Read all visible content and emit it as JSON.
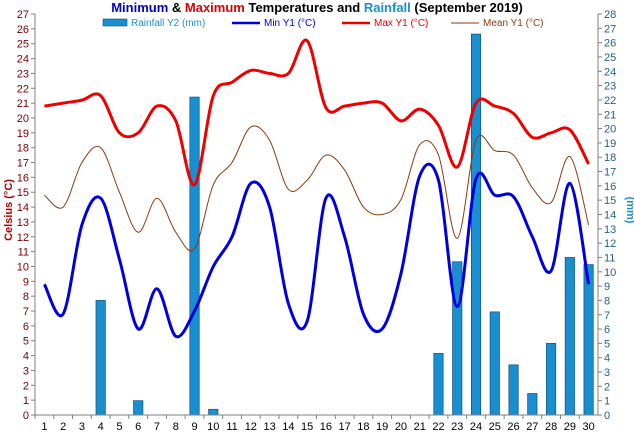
{
  "chart_data": {
    "type": "bar+line",
    "title_parts": [
      {
        "text": "Minimum",
        "color": "#0000cc"
      },
      {
        "text": " & ",
        "color": "#000000"
      },
      {
        "text": "Maximum",
        "color": "#dd0000"
      },
      {
        "text": " Temperatures and ",
        "color": "#000000"
      },
      {
        "text": "Rainfall",
        "color": "#1a8fd0"
      },
      {
        "text": " (September 2019)",
        "color": "#000000"
      }
    ],
    "ylabel_left": "Celsius (°C)",
    "ylabel_right": "(mm)",
    "ylim_left": [
      0,
      27
    ],
    "ylim_right": [
      0,
      28
    ],
    "x": [
      1,
      2,
      3,
      4,
      5,
      6,
      7,
      8,
      9,
      10,
      11,
      12,
      13,
      14,
      15,
      16,
      17,
      18,
      19,
      20,
      21,
      22,
      23,
      24,
      25,
      26,
      27,
      28,
      29,
      30
    ],
    "series": [
      {
        "name": "Rainfall Y2 (mm)",
        "kind": "bar",
        "axis": "right",
        "color": "#1a8fd0",
        "values": [
          0,
          0,
          0,
          8,
          0,
          1,
          0,
          0,
          22.2,
          0.4,
          0,
          0,
          0,
          0,
          0,
          0,
          0,
          0,
          0,
          0,
          0,
          4.3,
          10.7,
          26.6,
          7.2,
          3.5,
          1.5,
          5,
          11,
          10.5
        ]
      },
      {
        "name": "Min Y1 (°C)",
        "kind": "line",
        "axis": "left",
        "color": "#0000dd",
        "values": [
          8.8,
          6.8,
          12.8,
          14.6,
          10.5,
          5.8,
          8.5,
          5.3,
          7.0,
          10.0,
          12.0,
          15.6,
          14.0,
          7.5,
          6.3,
          14.6,
          12.0,
          6.8,
          5.8,
          9.5,
          16.1,
          15.8,
          7.3,
          15.9,
          14.8,
          14.7,
          12.0,
          9.7,
          15.6,
          8.8
        ]
      },
      {
        "name": "Max Y1 (°C)",
        "kind": "line",
        "axis": "left",
        "color": "#ee0000",
        "values": [
          20.8,
          21.0,
          21.2,
          21.5,
          19.0,
          19.0,
          20.8,
          19.8,
          15.5,
          21.5,
          22.4,
          23.2,
          23.0,
          23.0,
          25.2,
          20.7,
          20.8,
          21.0,
          21.0,
          19.8,
          20.6,
          19.5,
          16.7,
          21.0,
          20.8,
          20.3,
          18.7,
          19.0,
          19.2,
          16.9
        ]
      },
      {
        "name": "Mean Y1 (°C)",
        "kind": "line",
        "axis": "left",
        "color": "#8b3a0e",
        "values": [
          14.8,
          14.0,
          17.0,
          18.0,
          15.0,
          12.3,
          14.6,
          12.3,
          11.2,
          15.5,
          17.0,
          19.4,
          18.5,
          15.2,
          15.8,
          17.5,
          16.5,
          14.0,
          13.5,
          14.5,
          18.2,
          17.5,
          11.9,
          18.5,
          17.8,
          17.5,
          15.3,
          14.3,
          17.4,
          12.8
        ]
      }
    ],
    "grid": false,
    "legend_position": "top"
  }
}
